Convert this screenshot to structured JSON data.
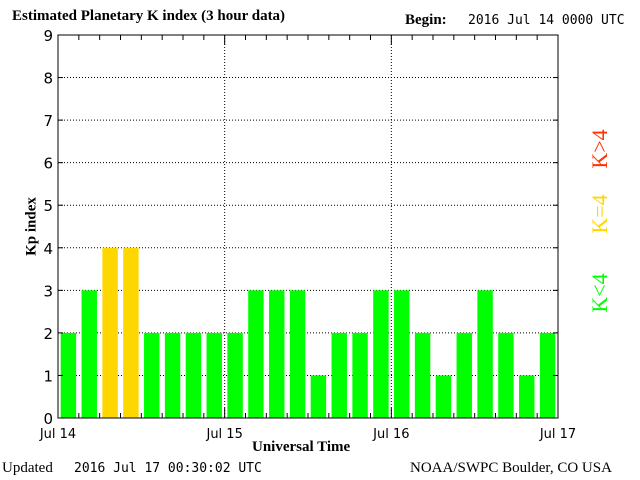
{
  "header": {
    "title": "Estimated Planetary K index (3 hour data)",
    "begin_label": "Begin:",
    "begin_value": "2016 Jul 14 0000 UTC"
  },
  "footer": {
    "updated_label": "Updated",
    "updated_value": "2016 Jul 17 00:30:02 UTC",
    "source": "NOAA/SWPC Boulder, CO USA"
  },
  "legend": {
    "low": "K<4",
    "mid": "K=4",
    "high": "K>4"
  },
  "colors": {
    "low": "#00ff00",
    "mid": "#ffd700",
    "high": "#ff3300",
    "grid": "#000000"
  },
  "chart_data": {
    "type": "bar",
    "title": "Estimated Planetary K index (3 hour data)",
    "xlabel": "Universal Time",
    "ylabel": "Kp index",
    "ylim": [
      0,
      9
    ],
    "yticks": [
      "0",
      "1",
      "2",
      "3",
      "4",
      "5",
      "6",
      "7",
      "8",
      "9"
    ],
    "xticks": [
      "Jul 14",
      "Jul 15",
      "Jul 16",
      "Jul 17"
    ],
    "grid": true,
    "values": [
      2,
      3,
      4,
      4,
      2,
      2,
      2,
      2,
      2,
      3,
      3,
      3,
      1,
      2,
      2,
      3,
      3,
      2,
      1,
      2,
      3,
      2,
      1,
      2
    ]
  }
}
